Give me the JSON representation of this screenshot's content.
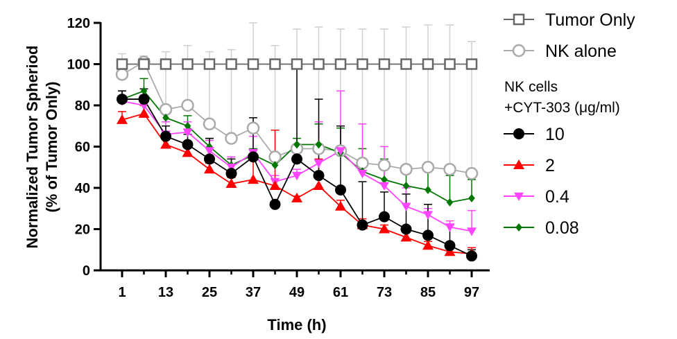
{
  "chart_data": {
    "type": "line",
    "xlabel": "Time (h)",
    "ylabel_line1": "Normalized Tumor Spheriod",
    "ylabel_line2": "(% of Tumor Only)",
    "xlim": [
      1,
      97
    ],
    "ylim": [
      0,
      120
    ],
    "xticks": [
      1,
      13,
      25,
      37,
      49,
      61,
      73,
      85,
      97
    ],
    "yticks": [
      0,
      20,
      40,
      60,
      80,
      100,
      120
    ],
    "x": [
      1,
      7,
      13,
      19,
      25,
      31,
      37,
      43,
      49,
      55,
      61,
      67,
      73,
      79,
      85,
      91,
      97
    ],
    "legend_group_title_line1": "NK cells",
    "legend_group_title_line2": "+CYT-303 (μg/ml)",
    "series": [
      {
        "name": "Tumor Only",
        "color": "#666666",
        "marker": "square-open",
        "values": [
          100,
          100,
          100,
          100,
          100,
          100,
          100,
          100,
          100,
          100,
          100,
          100,
          100,
          100,
          100,
          100,
          100
        ],
        "errors": [
          0,
          0,
          0,
          0,
          0,
          0,
          0,
          0,
          0,
          0,
          0,
          0,
          0,
          0,
          0,
          0,
          0
        ]
      },
      {
        "name": "NK alone",
        "color": "#aaaaaa",
        "marker": "circle-open",
        "values": [
          95,
          101,
          78,
          80,
          71,
          64,
          69,
          55,
          59,
          59,
          58,
          52,
          51,
          49,
          50,
          49,
          47
        ],
        "errors": [
          10,
          3,
          28,
          29,
          35,
          43,
          52,
          54,
          58,
          59,
          59,
          65,
          66,
          69,
          69,
          70,
          64
        ]
      },
      {
        "name": "10",
        "color": "#000000",
        "marker": "circle-filled",
        "values": [
          83,
          83,
          65,
          61,
          54,
          47,
          55,
          32,
          54,
          46,
          39,
          22,
          26,
          20,
          17,
          12,
          7
        ],
        "errors": [
          4,
          5,
          5,
          5,
          10,
          7,
          19,
          0,
          46,
          37,
          31,
          21,
          12,
          17,
          15,
          10,
          3
        ]
      },
      {
        "name": "2",
        "color": "#ff0000",
        "marker": "triangle-up",
        "values": [
          73,
          76,
          61,
          57,
          49,
          42,
          44,
          41,
          35,
          41,
          31,
          22,
          20,
          16,
          12,
          9,
          8
        ],
        "errors": [
          4,
          4,
          4,
          3,
          3,
          3,
          10,
          27,
          1,
          13,
          3,
          3,
          2,
          3,
          2,
          2,
          3
        ]
      },
      {
        "name": "0.4",
        "color": "#ff44ff",
        "marker": "triangle-down",
        "values": [
          82,
          80,
          66,
          67,
          58,
          50,
          57,
          43,
          46,
          52,
          58,
          47,
          41,
          31,
          27,
          21,
          19
        ],
        "errors": [
          5,
          5,
          6,
          5,
          5,
          5,
          8,
          3,
          3,
          20,
          29,
          24,
          19,
          9,
          3,
          3,
          10
        ]
      },
      {
        "name": "0.08",
        "color": "#007700",
        "marker": "diamond",
        "values": [
          83,
          87,
          74,
          70,
          60,
          51,
          56,
          51,
          61,
          61,
          57,
          48,
          44,
          41,
          39,
          33,
          35
        ],
        "errors": [
          4,
          6,
          6,
          5,
          4,
          4,
          3,
          4,
          3,
          10,
          12,
          11,
          10,
          10,
          10,
          13,
          9
        ]
      }
    ]
  }
}
